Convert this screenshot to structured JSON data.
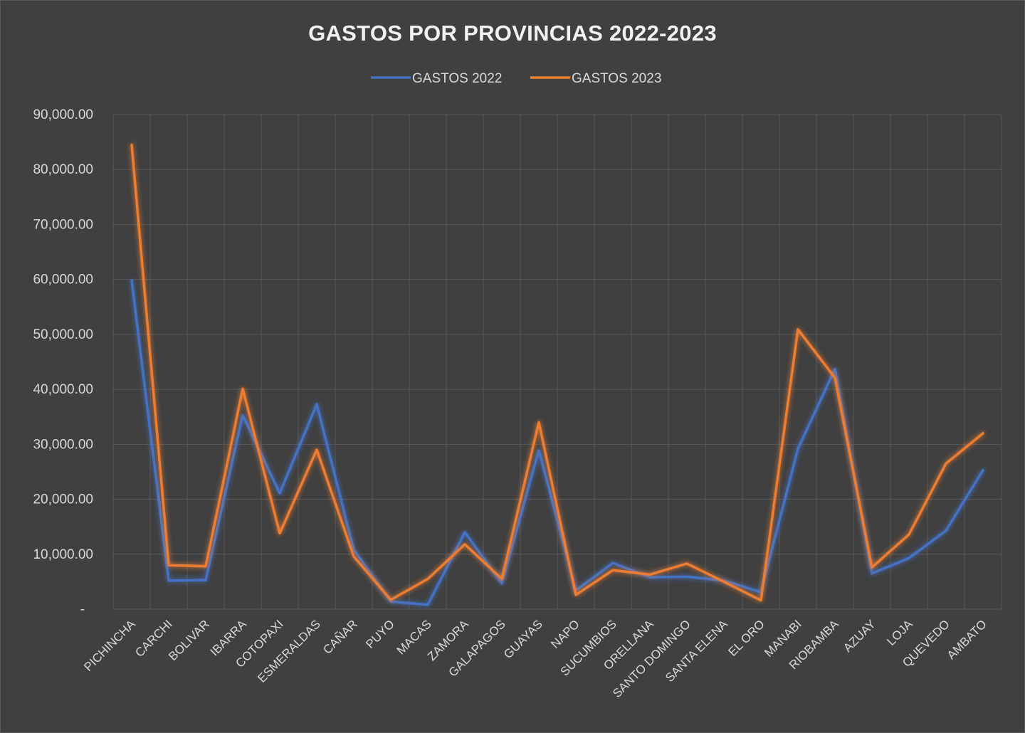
{
  "chart_data": {
    "type": "line",
    "title": "GASTOS POR PROVINCIAS 2022-2023",
    "xlabel": "",
    "ylabel": "",
    "ylim": [
      0,
      90000
    ],
    "yticks": [
      "-",
      "10,000.00",
      "20,000.00",
      "30,000.00",
      "40,000.00",
      "50,000.00",
      "60,000.00",
      "70,000.00",
      "80,000.00",
      "90,000.00"
    ],
    "grid": true,
    "legend_position": "top",
    "categories": [
      "PICHINCHA",
      "CARCHI",
      "BOLIVAR",
      "IBARRA",
      "COTOPAXI",
      "ESMERALDAS",
      "CAÑAR",
      "PUYO",
      "MACAS",
      "ZAMORA",
      "GALAPAGOS",
      "GUAYAS",
      "NAPO",
      "SUCUMBIOS",
      "ORELLANA",
      "SANTO DOMINGO",
      "SANTA ELENA",
      "EL ORO",
      "MANABI",
      "RIOBAMBA",
      "AZUAY",
      "LOJA",
      "QUEVEDO",
      "AMBATO"
    ],
    "series": [
      {
        "name": "GASTOS 2022",
        "color": "#4472c4",
        "values": [
          59800,
          5200,
          5300,
          35300,
          21100,
          37300,
          10800,
          1400,
          800,
          14000,
          4700,
          28900,
          3400,
          8400,
          5800,
          5900,
          5200,
          3100,
          29200,
          43700,
          6500,
          9300,
          14300,
          25300
        ]
      },
      {
        "name": "GASTOS 2023",
        "color": "#ed7d31",
        "values": [
          84500,
          8000,
          7800,
          40100,
          13800,
          29000,
          9600,
          1700,
          5500,
          11800,
          5500,
          34000,
          2600,
          7100,
          6300,
          8300,
          5000,
          1600,
          50900,
          42100,
          7600,
          13600,
          26500,
          32000
        ]
      }
    ]
  }
}
